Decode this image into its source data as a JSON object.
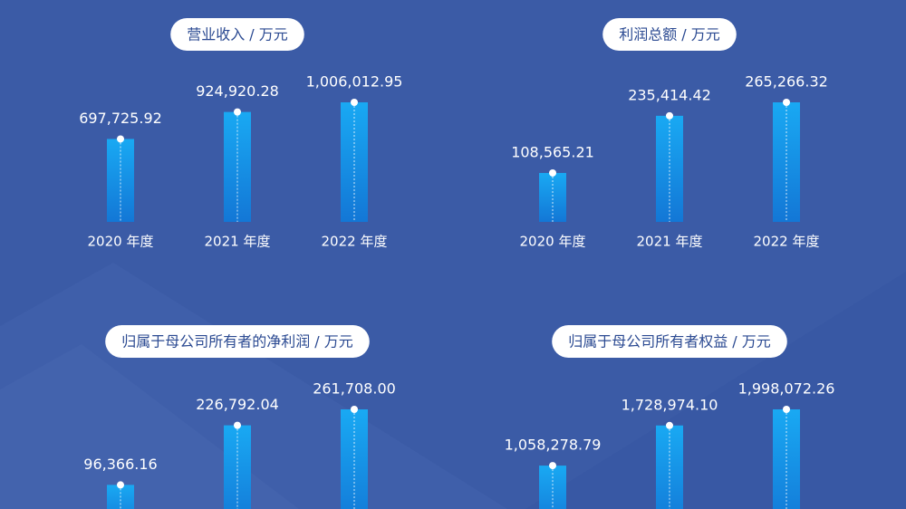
{
  "chart_data": [
    {
      "type": "bar",
      "title": "营业收入 / 万元",
      "categories": [
        "2020 年度",
        "2021 年度",
        "2022 年度"
      ],
      "values": [
        697725.92,
        924920.28,
        1006012.95
      ],
      "value_labels": [
        "697,725.92",
        "924,920.28",
        "1,006,012.95"
      ],
      "color": "#1a9ff0"
    },
    {
      "type": "bar",
      "title": "利润总额 / 万元",
      "categories": [
        "2020 年度",
        "2021 年度",
        "2022 年度"
      ],
      "values": [
        108565.21,
        235414.42,
        265266.32
      ],
      "value_labels": [
        "108,565.21",
        "235,414.42",
        "265,266.32"
      ],
      "color": "#1a9ff0"
    },
    {
      "type": "bar",
      "title": "归属于母公司所有者的净利润 / 万元",
      "values": [
        96366.16,
        226792.04,
        261708.0
      ],
      "value_labels": [
        "96,366.16",
        "226,792.04",
        "261,708.00"
      ],
      "color": "#1a9ff0"
    },
    {
      "type": "bar",
      "title": "归属于母公司所有者权益 / 万元",
      "values": [
        1058278.79,
        1728974.1,
        1998072.26
      ],
      "value_labels": [
        "1,058,278.79",
        "1,728,974.10",
        "1,998,072.26"
      ],
      "color": "#1a9ff0"
    }
  ]
}
